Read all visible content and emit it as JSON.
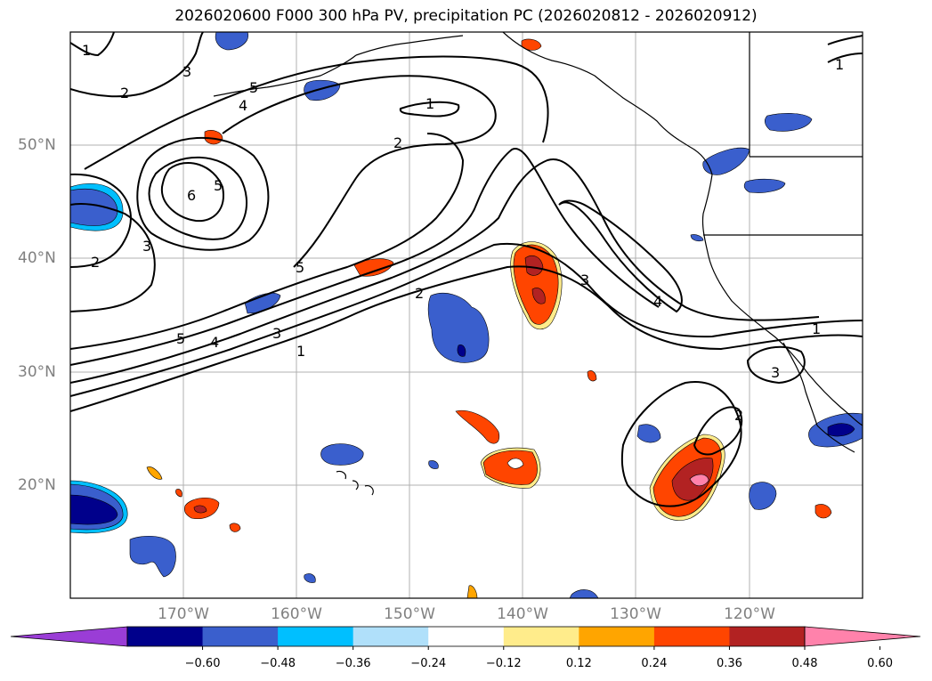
{
  "title": "2026020600 F000 300 hPa PV, precipitation PC (2026020812 - 2026020912)",
  "map": {
    "lon_range": [
      -180,
      -110
    ],
    "lat_range": [
      10,
      60
    ],
    "lon_labels": [
      {
        "lon": -170,
        "text": "170°W"
      },
      {
        "lon": -160,
        "text": "160°W"
      },
      {
        "lon": -150,
        "text": "150°W"
      },
      {
        "lon": -140,
        "text": "140°W"
      },
      {
        "lon": -130,
        "text": "130°W"
      },
      {
        "lon": -120,
        "text": "120°W"
      }
    ],
    "lat_labels": [
      {
        "lat": 50,
        "text": "50°N"
      },
      {
        "lat": 40,
        "text": "40°N"
      },
      {
        "lat": 30,
        "text": "30°N"
      },
      {
        "lat": 20,
        "text": "20°N"
      }
    ],
    "pv_contour_labels": [
      "1",
      "2",
      "3",
      "4",
      "5",
      "6"
    ]
  },
  "colorbar": {
    "colors": [
      "#9a3dd6",
      "#00008b",
      "#3a5fcd",
      "#00bfff",
      "#b0e0fa",
      "#ffffff",
      "#ffec8b",
      "#ffa500",
      "#ff4500",
      "#b22222",
      "#ff82ab"
    ],
    "ticks": [
      "-0.60",
      "-0.48",
      "-0.36",
      "-0.24",
      "-0.12",
      "0.12",
      "0.24",
      "0.36",
      "0.48",
      "0.60"
    ]
  }
}
